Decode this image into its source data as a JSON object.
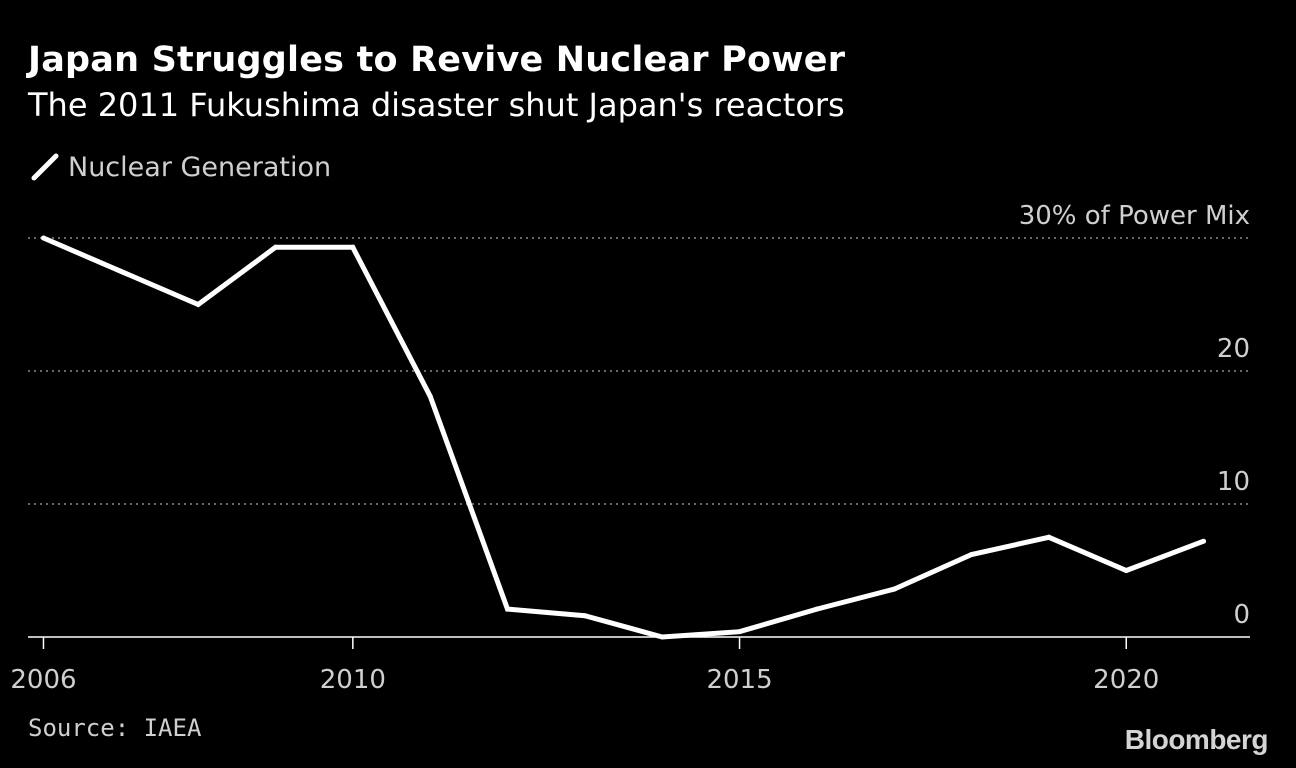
{
  "header": {
    "title": "Japan Struggles to Revive Nuclear Power",
    "subtitle": "The 2011 Fukushima disaster shut Japan's reactors"
  },
  "legend": {
    "label": "Nuclear Generation",
    "icon": "line-swatch-icon"
  },
  "footer": {
    "source": "Source: IAEA",
    "brand": "Bloomberg"
  },
  "colors": {
    "background": "#000000",
    "line": "#ffffff",
    "grid": "#8a8a8a",
    "text": "#cfcfcf"
  },
  "chart_data": {
    "type": "line",
    "title": "Japan Struggles to Revive Nuclear Power",
    "subtitle": "The 2011 Fukushima disaster shut Japan's reactors",
    "xlabel": "",
    "ylabel": "% of Power Mix",
    "xlim": [
      2005.8,
      2021.6
    ],
    "ylim": [
      0,
      30
    ],
    "grid": true,
    "legend_position": "top-left",
    "series": [
      {
        "name": "Nuclear Generation",
        "x": [
          2006,
          2007,
          2008,
          2009,
          2010,
          2011,
          2012,
          2013,
          2014,
          2015,
          2016,
          2017,
          2018,
          2019,
          2020,
          2021
        ],
        "values": [
          30.0,
          27.5,
          25.0,
          29.3,
          29.3,
          18.1,
          2.1,
          1.6,
          0.0,
          0.4,
          2.1,
          3.6,
          6.2,
          7.5,
          5.0,
          7.2
        ]
      }
    ],
    "x_ticks": [
      2006,
      2010,
      2015,
      2020
    ],
    "x_tick_labels": [
      "2006",
      "2010",
      "2015",
      "2020"
    ],
    "y_ticks": [
      0,
      10,
      20,
      30
    ],
    "y_tick_labels": [
      "0",
      "10",
      "20",
      "30% of Power Mix"
    ]
  }
}
